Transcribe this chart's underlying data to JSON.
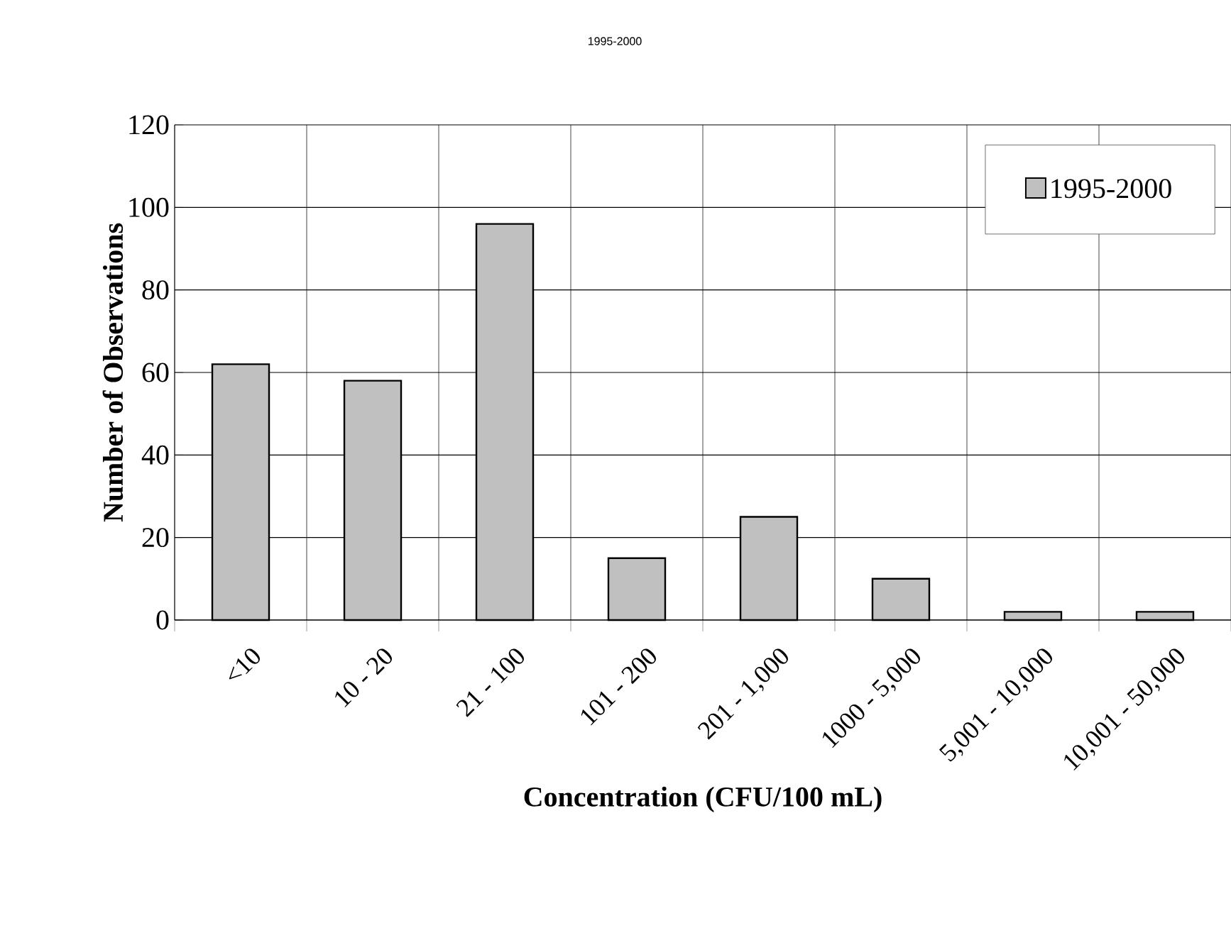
{
  "chart_data": {
    "type": "bar",
    "title": "1995-2000",
    "xlabel": "Concentration (CFU/100 mL)",
    "ylabel": "Number of Observations",
    "categories": [
      "<10",
      "10 - 20",
      "21 - 100",
      "101 - 200",
      "201 - 1,000",
      "1000 - 5,000",
      "5,001 - 10,000",
      "10,001 - 50,000"
    ],
    "series": [
      {
        "name": "1995-2000",
        "color": "#c0c0c0",
        "values": [
          62,
          58,
          96,
          15,
          25,
          10,
          2,
          2
        ]
      }
    ],
    "ylim": [
      0,
      120
    ],
    "yticks": [
      0,
      20,
      40,
      60,
      80,
      100,
      120
    ],
    "grid": true,
    "legend": "top right"
  }
}
